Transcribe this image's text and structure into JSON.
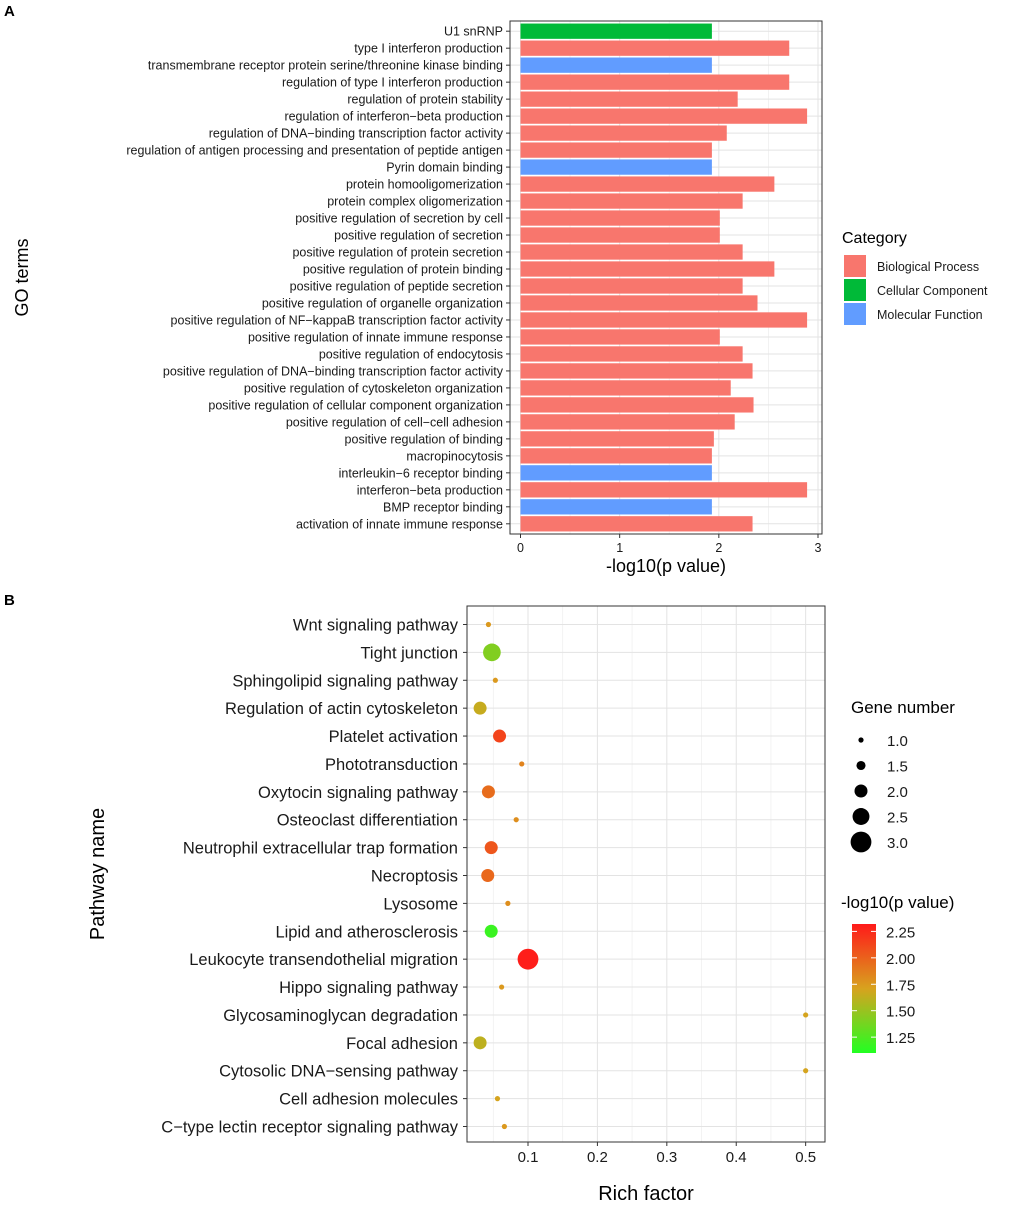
{
  "panels": {
    "a_label": "A",
    "b_label": "B"
  },
  "chart_data": [
    {
      "type": "bar",
      "orientation": "horizontal",
      "xlabel": "-log10(p value)",
      "ylabel": "GO terms",
      "xlim": [
        0,
        3
      ],
      "xticks": [
        0,
        1,
        2,
        3
      ],
      "legend": {
        "title": "Category",
        "position": "right"
      },
      "category_colors": {
        "Biological Process": "#F8766D",
        "Cellular Component": "#00BA38",
        "Molecular Function": "#619CFF"
      },
      "legend_entries": [
        "Biological Process",
        "Cellular Component",
        "Molecular Function"
      ],
      "terms": [
        {
          "label": "U1 snRNP",
          "value": 1.93,
          "category": "Cellular Component"
        },
        {
          "label": "type I interferon production",
          "value": 2.71,
          "category": "Biological Process"
        },
        {
          "label": "transmembrane receptor protein serine/threonine kinase binding",
          "value": 1.93,
          "category": "Molecular Function"
        },
        {
          "label": "regulation of type I interferon production",
          "value": 2.71,
          "category": "Biological Process"
        },
        {
          "label": "regulation of protein stability",
          "value": 2.19,
          "category": "Biological Process"
        },
        {
          "label": "regulation of interferon−beta production",
          "value": 2.89,
          "category": "Biological Process"
        },
        {
          "label": "regulation of DNA−binding transcription factor activity",
          "value": 2.08,
          "category": "Biological Process"
        },
        {
          "label": "regulation of antigen processing and presentation of peptide antigen",
          "value": 1.93,
          "category": "Biological Process"
        },
        {
          "label": "Pyrin domain binding",
          "value": 1.93,
          "category": "Molecular Function"
        },
        {
          "label": "protein homooligomerization",
          "value": 2.56,
          "category": "Biological Process"
        },
        {
          "label": "protein complex oligomerization",
          "value": 2.24,
          "category": "Biological Process"
        },
        {
          "label": "positive regulation of secretion by cell",
          "value": 2.01,
          "category": "Biological Process"
        },
        {
          "label": "positive regulation of secretion",
          "value": 2.01,
          "category": "Biological Process"
        },
        {
          "label": "positive regulation of protein secretion",
          "value": 2.24,
          "category": "Biological Process"
        },
        {
          "label": "positive regulation of protein binding",
          "value": 2.56,
          "category": "Biological Process"
        },
        {
          "label": "positive regulation of peptide secretion",
          "value": 2.24,
          "category": "Biological Process"
        },
        {
          "label": "positive regulation of organelle organization",
          "value": 2.39,
          "category": "Biological Process"
        },
        {
          "label": "positive regulation of NF−kappaB transcription factor activity",
          "value": 2.89,
          "category": "Biological Process"
        },
        {
          "label": "positive regulation of innate immune response",
          "value": 2.01,
          "category": "Biological Process"
        },
        {
          "label": "positive regulation of endocytosis",
          "value": 2.24,
          "category": "Biological Process"
        },
        {
          "label": "positive regulation of DNA−binding transcription factor activity",
          "value": 2.34,
          "category": "Biological Process"
        },
        {
          "label": "positive regulation of cytoskeleton organization",
          "value": 2.12,
          "category": "Biological Process"
        },
        {
          "label": "positive regulation of cellular component organization",
          "value": 2.35,
          "category": "Biological Process"
        },
        {
          "label": "positive regulation of cell−cell adhesion",
          "value": 2.16,
          "category": "Biological Process"
        },
        {
          "label": "positive regulation of binding",
          "value": 1.95,
          "category": "Biological Process"
        },
        {
          "label": "macropinocytosis",
          "value": 1.93,
          "category": "Biological Process"
        },
        {
          "label": "interleukin−6 receptor binding",
          "value": 1.93,
          "category": "Molecular Function"
        },
        {
          "label": "interferon−beta production",
          "value": 2.89,
          "category": "Biological Process"
        },
        {
          "label": "BMP receptor binding",
          "value": 1.93,
          "category": "Molecular Function"
        },
        {
          "label": "activation of innate immune response",
          "value": 2.34,
          "category": "Biological Process"
        }
      ]
    },
    {
      "type": "scatter",
      "xlabel": "Rich factor",
      "ylabel": "Pathway name",
      "xlim": [
        0.015,
        0.525
      ],
      "xticks": [
        0.1,
        0.2,
        0.3,
        0.4,
        0.5
      ],
      "tick_labels": [
        "0.1",
        "0.2",
        "0.3",
        "0.4",
        "0.5"
      ],
      "size_legend": {
        "title": "Gene number",
        "values": [
          1.0,
          1.5,
          2.0,
          2.5,
          3.0
        ],
        "labels": [
          "1.0",
          "1.5",
          "2.0",
          "2.5",
          "3.0"
        ]
      },
      "color_legend": {
        "title": "-log10(p value)",
        "min": 1.1,
        "max": 2.32,
        "ticks": [
          1.25,
          1.5,
          1.75,
          2.0,
          2.25
        ],
        "labels": [
          "1.25",
          "1.50",
          "1.75",
          "2.00",
          "2.25"
        ],
        "low_color": "#22FF22",
        "mid_color": "#D8A21E",
        "high_color": "#FF1A1A"
      },
      "pathways": [
        {
          "name": "Wnt signaling pathway",
          "rich_factor": 0.043,
          "gene_number": 1,
          "neg_log10_p": 1.75
        },
        {
          "name": "Tight junction",
          "rich_factor": 0.048,
          "gene_number": 2.6,
          "neg_log10_p": 1.42
        },
        {
          "name": "Sphingolipid signaling pathway",
          "rich_factor": 0.053,
          "gene_number": 1,
          "neg_log10_p": 1.75
        },
        {
          "name": "Regulation of actin cytoskeleton",
          "rich_factor": 0.031,
          "gene_number": 2.0,
          "neg_log10_p": 1.65
        },
        {
          "name": "Platelet activation",
          "rich_factor": 0.059,
          "gene_number": 2.0,
          "neg_log10_p": 2.13
        },
        {
          "name": "Phototransduction",
          "rich_factor": 0.091,
          "gene_number": 1,
          "neg_log10_p": 1.85
        },
        {
          "name": "Oxytocin signaling pathway",
          "rich_factor": 0.043,
          "gene_number": 2.0,
          "neg_log10_p": 1.95
        },
        {
          "name": "Osteoclast differentiation",
          "rich_factor": 0.083,
          "gene_number": 1,
          "neg_log10_p": 1.8
        },
        {
          "name": "Neutrophil extracellular trap formation",
          "rich_factor": 0.047,
          "gene_number": 2.0,
          "neg_log10_p": 2.05
        },
        {
          "name": "Necroptosis",
          "rich_factor": 0.042,
          "gene_number": 2.0,
          "neg_log10_p": 1.97
        },
        {
          "name": "Lysosome",
          "rich_factor": 0.071,
          "gene_number": 1,
          "neg_log10_p": 1.8
        },
        {
          "name": "Lipid and atherosclerosis",
          "rich_factor": 0.047,
          "gene_number": 2.0,
          "neg_log10_p": 1.18
        },
        {
          "name": "Leukocyte transendothelial migration",
          "rich_factor": 0.1,
          "gene_number": 3.0,
          "neg_log10_p": 2.3
        },
        {
          "name": "Hippo signaling pathway",
          "rich_factor": 0.062,
          "gene_number": 1,
          "neg_log10_p": 1.75
        },
        {
          "name": "Glycosaminoglycan degradation",
          "rich_factor": 0.5,
          "gene_number": 1,
          "neg_log10_p": 1.7
        },
        {
          "name": "Focal adhesion",
          "rich_factor": 0.031,
          "gene_number": 2.0,
          "neg_log10_p": 1.62
        },
        {
          "name": "Cytosolic DNA−sensing pathway",
          "rich_factor": 0.5,
          "gene_number": 1,
          "neg_log10_p": 1.7
        },
        {
          "name": "Cell adhesion molecules",
          "rich_factor": 0.056,
          "gene_number": 1,
          "neg_log10_p": 1.7
        },
        {
          "name": "C−type lectin receptor signaling pathway",
          "rich_factor": 0.066,
          "gene_number": 1,
          "neg_log10_p": 1.75
        }
      ]
    }
  ]
}
